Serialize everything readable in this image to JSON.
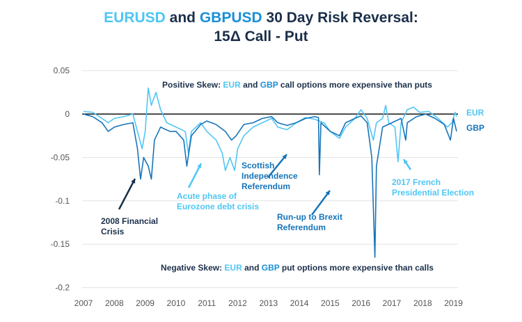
{
  "title": {
    "part1": "EURUSD",
    "part2": " and ",
    "part3": "GBPUSD",
    "part4": " 30 Day Risk Reversal:",
    "line2": "15Δ Call - Put"
  },
  "colors": {
    "eur": "#4fc6f4",
    "gbp": "#1674b9",
    "text": "#1b2f4a",
    "grid": "#e3e3e3"
  },
  "chart_data": {
    "type": "line",
    "title": "EURUSD and GBPUSD 30 Day Risk Reversal: 15Δ Call - Put",
    "xlim": [
      2007,
      2019.1
    ],
    "ylim": [
      -0.2,
      0.05
    ],
    "grid": true,
    "xticks": [
      "2007",
      "2008",
      "2009",
      "2010",
      "2011",
      "2012",
      "2013",
      "2014",
      "2015",
      "2016",
      "2017",
      "2018",
      "2019"
    ],
    "yticks": [
      "0.05",
      "0",
      "-0.05",
      "-0.1",
      "-0.15",
      "-0.2"
    ],
    "legend": "right",
    "series": [
      {
        "name": "EUR",
        "points": [
          [
            2007,
            0.003
          ],
          [
            2007.3,
            0.002
          ],
          [
            2007.6,
            -0.005
          ],
          [
            2007.8,
            -0.01
          ],
          [
            2008,
            -0.005
          ],
          [
            2008.3,
            -0.003
          ],
          [
            2008.6,
            0
          ],
          [
            2008.75,
            -0.02
          ],
          [
            2008.9,
            -0.04
          ],
          [
            2009.0,
            -0.02
          ],
          [
            2009.1,
            0.03
          ],
          [
            2009.2,
            0.01
          ],
          [
            2009.35,
            0.025
          ],
          [
            2009.5,
            0.005
          ],
          [
            2009.7,
            -0.01
          ],
          [
            2010,
            -0.015
          ],
          [
            2010.3,
            -0.02
          ],
          [
            2010.4,
            -0.045
          ],
          [
            2010.5,
            -0.02
          ],
          [
            2010.8,
            -0.01
          ],
          [
            2011,
            -0.02
          ],
          [
            2011.3,
            -0.03
          ],
          [
            2011.5,
            -0.045
          ],
          [
            2011.6,
            -0.065
          ],
          [
            2011.75,
            -0.05
          ],
          [
            2011.9,
            -0.065
          ],
          [
            2012.0,
            -0.04
          ],
          [
            2012.2,
            -0.025
          ],
          [
            2012.5,
            -0.015
          ],
          [
            2012.8,
            -0.01
          ],
          [
            2013.1,
            -0.005
          ],
          [
            2013.3,
            -0.015
          ],
          [
            2013.6,
            -0.018
          ],
          [
            2013.9,
            -0.01
          ],
          [
            2014.2,
            -0.004
          ],
          [
            2014.5,
            -0.006
          ],
          [
            2014.8,
            -0.01
          ],
          [
            2015.0,
            -0.02
          ],
          [
            2015.3,
            -0.028
          ],
          [
            2015.5,
            -0.015
          ],
          [
            2015.8,
            -0.005
          ],
          [
            2016.0,
            0.005
          ],
          [
            2016.2,
            -0.005
          ],
          [
            2016.4,
            -0.03
          ],
          [
            2016.5,
            -0.01
          ],
          [
            2016.7,
            -0.005
          ],
          [
            2016.8,
            0.01
          ],
          [
            2016.9,
            -0.01
          ],
          [
            2017.1,
            -0.015
          ],
          [
            2017.2,
            -0.055
          ],
          [
            2017.3,
            -0.01
          ],
          [
            2017.5,
            0.005
          ],
          [
            2017.7,
            0.008
          ],
          [
            2017.9,
            0.002
          ],
          [
            2018.2,
            0.003
          ],
          [
            2018.5,
            -0.005
          ],
          [
            2018.8,
            -0.015
          ],
          [
            2018.95,
            -0.01
          ],
          [
            2019.05,
            0.002
          ],
          [
            2019.1,
            -0.003
          ]
        ]
      },
      {
        "name": "GBP",
        "points": [
          [
            2007,
            0
          ],
          [
            2007.3,
            -0.003
          ],
          [
            2007.6,
            -0.01
          ],
          [
            2007.8,
            -0.02
          ],
          [
            2008,
            -0.015
          ],
          [
            2008.3,
            -0.012
          ],
          [
            2008.6,
            -0.01
          ],
          [
            2008.75,
            -0.04
          ],
          [
            2008.85,
            -0.075
          ],
          [
            2008.95,
            -0.05
          ],
          [
            2009.1,
            -0.06
          ],
          [
            2009.2,
            -0.075
          ],
          [
            2009.3,
            -0.03
          ],
          [
            2009.5,
            -0.015
          ],
          [
            2009.8,
            -0.02
          ],
          [
            2010,
            -0.02
          ],
          [
            2010.25,
            -0.03
          ],
          [
            2010.35,
            -0.06
          ],
          [
            2010.5,
            -0.025
          ],
          [
            2010.8,
            -0.012
          ],
          [
            2011,
            -0.008
          ],
          [
            2011.3,
            -0.012
          ],
          [
            2011.6,
            -0.02
          ],
          [
            2011.8,
            -0.03
          ],
          [
            2011.95,
            -0.025
          ],
          [
            2012.2,
            -0.012
          ],
          [
            2012.5,
            -0.01
          ],
          [
            2012.8,
            -0.005
          ],
          [
            2013.1,
            -0.003
          ],
          [
            2013.3,
            -0.01
          ],
          [
            2013.6,
            -0.013
          ],
          [
            2013.9,
            -0.01
          ],
          [
            2014.2,
            -0.005
          ],
          [
            2014.5,
            -0.003
          ],
          [
            2014.62,
            -0.004
          ],
          [
            2014.65,
            -0.07
          ],
          [
            2014.7,
            -0.01
          ],
          [
            2015,
            -0.02
          ],
          [
            2015.3,
            -0.025
          ],
          [
            2015.5,
            -0.01
          ],
          [
            2015.8,
            -0.005
          ],
          [
            2016,
            -0.002
          ],
          [
            2016.2,
            -0.01
          ],
          [
            2016.35,
            -0.05
          ],
          [
            2016.45,
            -0.165
          ],
          [
            2016.5,
            -0.06
          ],
          [
            2016.7,
            -0.015
          ],
          [
            2017,
            -0.01
          ],
          [
            2017.3,
            -0.005
          ],
          [
            2017.45,
            -0.03
          ],
          [
            2017.5,
            -0.01
          ],
          [
            2017.8,
            -0.003
          ],
          [
            2018.1,
            0
          ],
          [
            2018.4,
            -0.005
          ],
          [
            2018.7,
            -0.012
          ],
          [
            2018.9,
            -0.03
          ],
          [
            2019.0,
            -0.005
          ],
          [
            2019.1,
            -0.02
          ]
        ]
      }
    ],
    "annotations": {
      "positive": {
        "a": "Positive Skew: ",
        "eur": "EUR",
        "b": " and ",
        "gbp": "GBP",
        "c": " call options more expensive than puts"
      },
      "negative": {
        "a": "Negative Skew: ",
        "eur": "EUR",
        "b": " and ",
        "gbp": "GBP",
        "c": " put options more expensive than calls"
      },
      "crisis2008": [
        "2008 Financial",
        "Crisis"
      ],
      "eurozone": [
        "Acute phase of",
        "Eurozone debt crisis"
      ],
      "scottish": [
        "Scottish",
        "Independence",
        "Referendum"
      ],
      "brexit": [
        "Run-up to Brexit",
        "Referendum"
      ],
      "french": [
        "2017 French",
        "Presidential Election"
      ]
    }
  }
}
